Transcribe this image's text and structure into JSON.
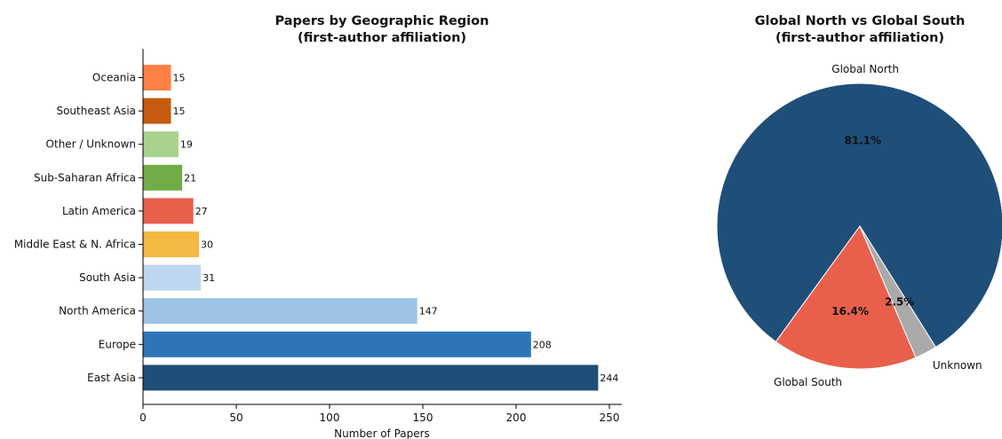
{
  "chart_data": [
    {
      "type": "bar",
      "orientation": "horizontal",
      "title": "Papers by Geographic Region",
      "subtitle": "(first-author affiliation)",
      "xlabel": "Number of Papers",
      "ylabel": "",
      "xlim": [
        0,
        256
      ],
      "xticks": [
        0,
        50,
        100,
        150,
        200,
        250
      ],
      "grid": false,
      "categories": [
        "East Asia",
        "Europe",
        "North America",
        "South Asia",
        "Middle East & N. Africa",
        "Latin America",
        "Sub-Saharan Africa",
        "Other / Unknown",
        "Southeast Asia",
        "Oceania"
      ],
      "values": [
        244,
        208,
        147,
        31,
        30,
        27,
        21,
        19,
        15,
        15
      ],
      "colors": [
        "#1f4e79",
        "#2e75b6",
        "#9dc3e6",
        "#bdd7ee",
        "#f4b942",
        "#e8604c",
        "#70ad47",
        "#a9d18e",
        "#c55a11",
        "#ff7f44"
      ]
    },
    {
      "type": "pie",
      "title": "Global North vs Global South",
      "subtitle": "(first-author affiliation)",
      "slices": [
        {
          "label": "Global North",
          "value": 81.1,
          "pct_label": "81.1%",
          "color": "#1f4e79"
        },
        {
          "label": "Global South",
          "value": 16.4,
          "pct_label": "16.4%",
          "color": "#e8604c"
        },
        {
          "label": "Unknown",
          "value": 2.5,
          "pct_label": "2.5%",
          "color": "#aaaaaa"
        }
      ]
    }
  ]
}
